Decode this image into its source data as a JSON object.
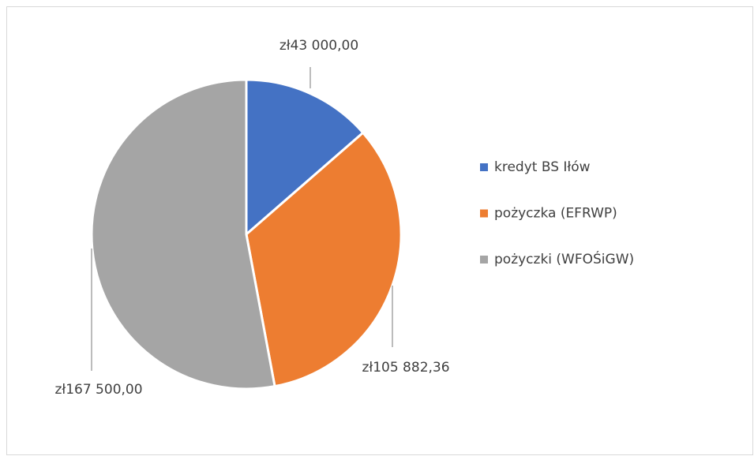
{
  "chart_data": {
    "type": "pie",
    "categories": [
      "kredyt BS Iłów",
      "pożyczka (EFRWP)",
      "pożyczki (WFOŚiGW)"
    ],
    "values": [
      43000,
      105882.36,
      167500
    ],
    "value_labels": [
      "zł43 000,00",
      "zł105 882,36",
      "zł167 500,00"
    ],
    "colors": [
      "#4472c4",
      "#ed7d31",
      "#a5a5a5"
    ],
    "legend": "right"
  }
}
